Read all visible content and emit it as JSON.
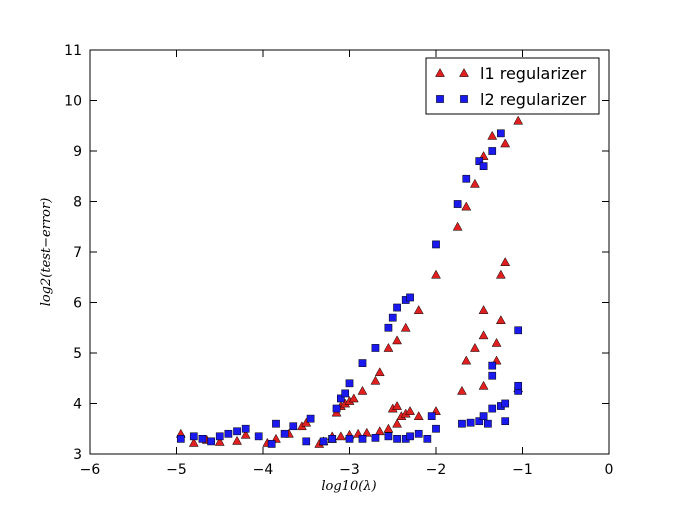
{
  "chart_data": {
    "type": "scatter",
    "title": "",
    "xlabel": "log10(λ)",
    "ylabel": "log2(test−error)",
    "xlim": [
      -6,
      0
    ],
    "ylim": [
      3,
      11
    ],
    "xticks": [
      -6,
      -5,
      -4,
      -3,
      -2,
      -1,
      0
    ],
    "xtick_labels": [
      "−6",
      "−5",
      "−4",
      "−3",
      "−2",
      "−1",
      "0"
    ],
    "yticks": [
      3,
      4,
      5,
      6,
      7,
      8,
      9,
      10,
      11
    ],
    "ytick_labels": [
      "3",
      "4",
      "5",
      "6",
      "7",
      "8",
      "9",
      "10",
      "11"
    ],
    "grid": false,
    "legend_position": "top-right",
    "series": [
      {
        "name": "l1 regularizer",
        "marker": "triangle",
        "color": "#e02020",
        "points": [
          [
            -4.95,
            3.4
          ],
          [
            -4.8,
            3.22
          ],
          [
            -4.65,
            3.28
          ],
          [
            -4.5,
            3.24
          ],
          [
            -4.3,
            3.26
          ],
          [
            -4.2,
            3.38
          ],
          [
            -3.95,
            3.22
          ],
          [
            -3.85,
            3.3
          ],
          [
            -3.7,
            3.4
          ],
          [
            -3.55,
            3.55
          ],
          [
            -3.5,
            3.62
          ],
          [
            -3.35,
            3.2
          ],
          [
            -3.3,
            3.25
          ],
          [
            -3.2,
            3.3
          ],
          [
            -3.15,
            3.82
          ],
          [
            -3.1,
            3.95
          ],
          [
            -3.05,
            4.0
          ],
          [
            -3.0,
            4.05
          ],
          [
            -2.95,
            4.1
          ],
          [
            -2.85,
            4.25
          ],
          [
            -2.7,
            4.45
          ],
          [
            -2.65,
            4.62
          ],
          [
            -2.55,
            5.1
          ],
          [
            -2.45,
            5.25
          ],
          [
            -2.35,
            5.5
          ],
          [
            -2.2,
            5.85
          ],
          [
            -3.2,
            3.35
          ],
          [
            -3.1,
            3.35
          ],
          [
            -3.0,
            3.38
          ],
          [
            -2.9,
            3.4
          ],
          [
            -2.8,
            3.42
          ],
          [
            -2.65,
            3.45
          ],
          [
            -2.55,
            3.5
          ],
          [
            -2.45,
            3.6
          ],
          [
            -2.4,
            3.75
          ],
          [
            -2.35,
            3.8
          ],
          [
            -2.5,
            3.9
          ],
          [
            -2.45,
            3.95
          ],
          [
            -2.3,
            3.85
          ],
          [
            -2.2,
            3.75
          ],
          [
            -2.0,
            3.85
          ],
          [
            -2.0,
            6.55
          ],
          [
            -1.75,
            7.5
          ],
          [
            -1.65,
            7.9
          ],
          [
            -1.55,
            8.35
          ],
          [
            -1.45,
            8.9
          ],
          [
            -1.35,
            9.3
          ],
          [
            -1.2,
            9.15
          ],
          [
            -1.05,
            9.6
          ],
          [
            -1.7,
            4.25
          ],
          [
            -1.65,
            4.85
          ],
          [
            -1.55,
            5.1
          ],
          [
            -1.45,
            4.35
          ],
          [
            -1.45,
            5.35
          ],
          [
            -1.45,
            5.85
          ],
          [
            -1.3,
            4.85
          ],
          [
            -1.3,
            5.2
          ],
          [
            -1.25,
            5.65
          ],
          [
            -1.25,
            6.55
          ],
          [
            -1.2,
            6.8
          ],
          [
            -1.05,
            4.3
          ]
        ]
      },
      {
        "name": "l2 regularizer",
        "marker": "square",
        "color": "#1a1aee",
        "points": [
          [
            -4.95,
            3.3
          ],
          [
            -4.8,
            3.35
          ],
          [
            -4.7,
            3.3
          ],
          [
            -4.6,
            3.25
          ],
          [
            -4.5,
            3.35
          ],
          [
            -4.4,
            3.4
          ],
          [
            -4.3,
            3.45
          ],
          [
            -4.2,
            3.5
          ],
          [
            -4.05,
            3.35
          ],
          [
            -3.9,
            3.2
          ],
          [
            -3.85,
            3.6
          ],
          [
            -3.75,
            3.4
          ],
          [
            -3.65,
            3.55
          ],
          [
            -3.5,
            3.25
          ],
          [
            -3.45,
            3.7
          ],
          [
            -3.3,
            3.25
          ],
          [
            -3.2,
            3.3
          ],
          [
            -3.15,
            3.9
          ],
          [
            -3.1,
            4.1
          ],
          [
            -3.05,
            4.2
          ],
          [
            -3.0,
            4.4
          ],
          [
            -2.85,
            4.8
          ],
          [
            -2.7,
            5.1
          ],
          [
            -2.55,
            5.5
          ],
          [
            -2.5,
            5.7
          ],
          [
            -2.45,
            5.9
          ],
          [
            -2.35,
            6.05
          ],
          [
            -2.3,
            6.1
          ],
          [
            -3.2,
            3.3
          ],
          [
            -3.0,
            3.3
          ],
          [
            -2.85,
            3.3
          ],
          [
            -2.7,
            3.32
          ],
          [
            -2.55,
            3.35
          ],
          [
            -2.45,
            3.3
          ],
          [
            -2.35,
            3.3
          ],
          [
            -2.3,
            3.35
          ],
          [
            -2.2,
            3.4
          ],
          [
            -2.1,
            3.3
          ],
          [
            -2.05,
            3.75
          ],
          [
            -2.0,
            3.5
          ],
          [
            -2.0,
            7.15
          ],
          [
            -1.75,
            7.95
          ],
          [
            -1.65,
            8.45
          ],
          [
            -1.5,
            8.8
          ],
          [
            -1.45,
            8.7
          ],
          [
            -1.35,
            9.0
          ],
          [
            -1.25,
            9.35
          ],
          [
            -1.15,
            9.8
          ],
          [
            -1.7,
            3.6
          ],
          [
            -1.6,
            3.62
          ],
          [
            -1.5,
            3.65
          ],
          [
            -1.45,
            3.75
          ],
          [
            -1.4,
            3.6
          ],
          [
            -1.35,
            3.9
          ],
          [
            -1.25,
            3.95
          ],
          [
            -1.2,
            3.65
          ],
          [
            -1.2,
            4.0
          ],
          [
            -1.35,
            4.55
          ],
          [
            -1.35,
            4.75
          ],
          [
            -1.05,
            4.25
          ],
          [
            -1.05,
            4.35
          ],
          [
            -1.05,
            5.45
          ]
        ]
      }
    ]
  }
}
